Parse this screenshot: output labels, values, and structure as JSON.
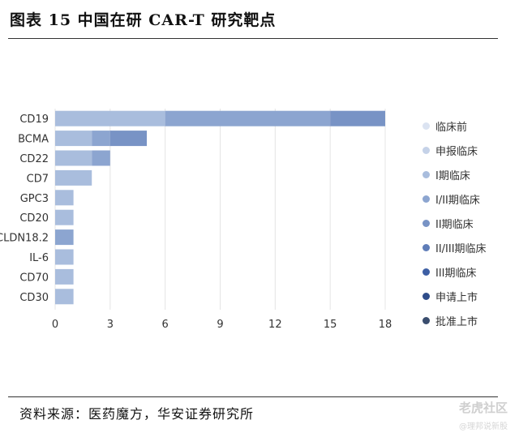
{
  "header": {
    "title": "图表 15 中国在研 CAR-T 研究靶点"
  },
  "footer": {
    "source": "资料来源：医药魔方，华安证券研究所",
    "watermark": "老虎社区",
    "watermark_sub": "@理邦说新股"
  },
  "chart_data": {
    "type": "bar",
    "orientation": "horizontal",
    "stacked": true,
    "categories": [
      "CD19",
      "BCMA",
      "CD22",
      "CD7",
      "GPC3",
      "CD20",
      "CLDN18.2",
      "IL-6",
      "CD70",
      "CD30"
    ],
    "series": [
      {
        "name": "临床前",
        "color": "#dbe3f1",
        "values": [
          0,
          0,
          0,
          0,
          0,
          0,
          0,
          0,
          0,
          0
        ]
      },
      {
        "name": "申报临床",
        "color": "#c5d2e8",
        "values": [
          0,
          0,
          0,
          0,
          0,
          0,
          0,
          0,
          0,
          0
        ]
      },
      {
        "name": "I期临床",
        "color": "#a9bddd",
        "values": [
          6,
          2,
          2,
          2,
          1,
          1,
          0,
          1,
          1,
          1
        ]
      },
      {
        "name": "I/II期临床",
        "color": "#8ca5d0",
        "values": [
          9,
          1,
          1,
          0,
          0,
          0,
          1,
          0,
          0,
          0
        ]
      },
      {
        "name": "II期临床",
        "color": "#7893c5",
        "values": [
          3,
          2,
          0,
          0,
          0,
          0,
          0,
          0,
          0,
          0
        ]
      },
      {
        "name": "II/III期临床",
        "color": "#5f7db8",
        "values": [
          0,
          0,
          0,
          0,
          0,
          0,
          0,
          0,
          0,
          0
        ]
      },
      {
        "name": "III期临床",
        "color": "#3d5fa4",
        "values": [
          0,
          0,
          0,
          0,
          0,
          0,
          0,
          0,
          0,
          0
        ]
      },
      {
        "name": "申请上市",
        "color": "#2f4d8a",
        "values": [
          0,
          0,
          0,
          0,
          0,
          0,
          0,
          0,
          0,
          0
        ]
      },
      {
        "name": "批准上市",
        "color": "#3a4d6e",
        "values": [
          0,
          0,
          0,
          0,
          0,
          0,
          0,
          0,
          0,
          0
        ]
      }
    ],
    "xticks": [
      0,
      3,
      6,
      9,
      12,
      15,
      18
    ],
    "xlim": [
      0,
      18
    ],
    "grid": true,
    "legend_position": "right"
  }
}
